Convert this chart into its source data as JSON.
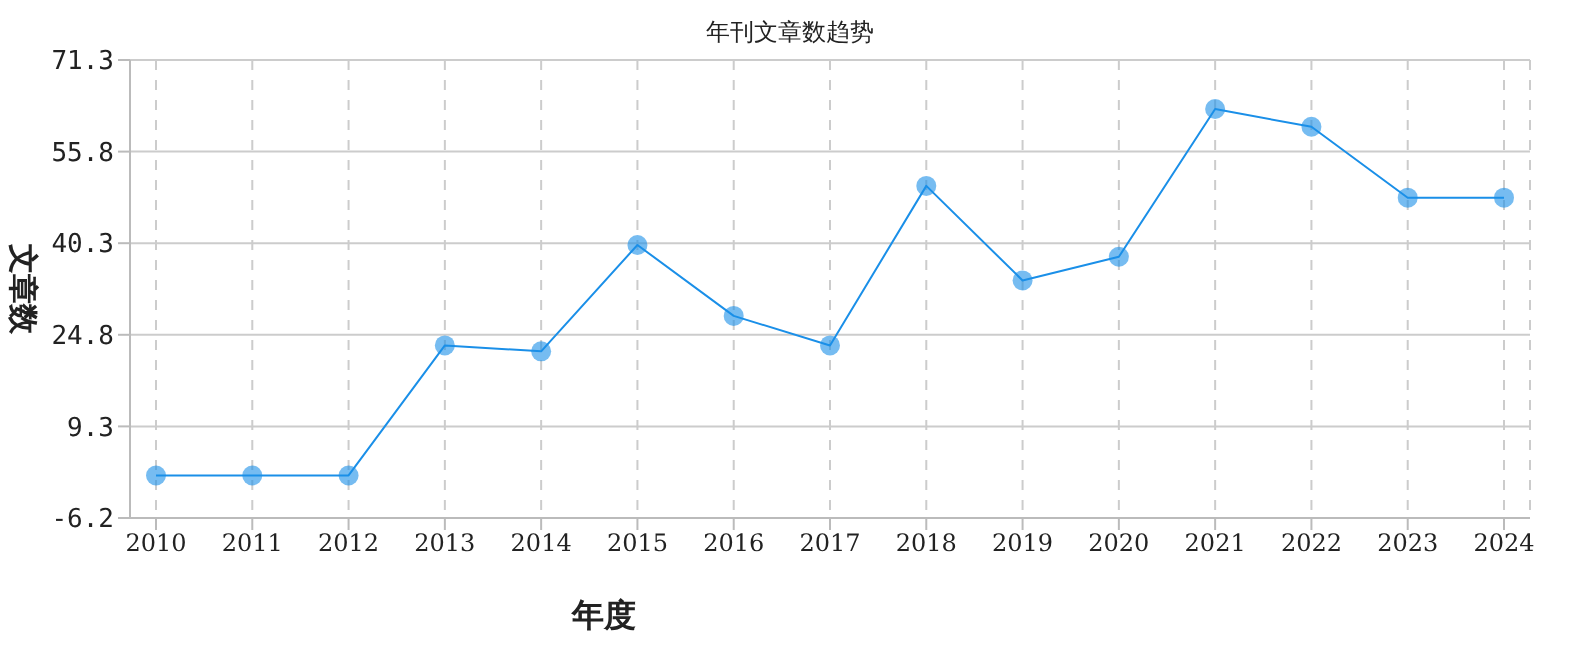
{
  "chart_data": {
    "type": "line",
    "title": "年刊文章数趋势",
    "xlabel": "年度",
    "ylabel": "文章数",
    "categories": [
      "2010",
      "2011",
      "2012",
      "2013",
      "2014",
      "2015",
      "2016",
      "2017",
      "2018",
      "2019",
      "2020",
      "2021",
      "2022",
      "2023",
      "2024"
    ],
    "series": [
      {
        "color": "#1a8fe8",
        "values": [
          1,
          1,
          1,
          23,
          22,
          40,
          28,
          23,
          50,
          34,
          38,
          63,
          60,
          48,
          48
        ]
      }
    ],
    "ylim": [
      -6.2,
      71.3
    ],
    "yticks": [
      -6.2,
      9.3,
      24.8,
      40.3,
      55.8,
      71.3
    ],
    "grid": true,
    "marker": "circle",
    "line_style": "solid"
  }
}
